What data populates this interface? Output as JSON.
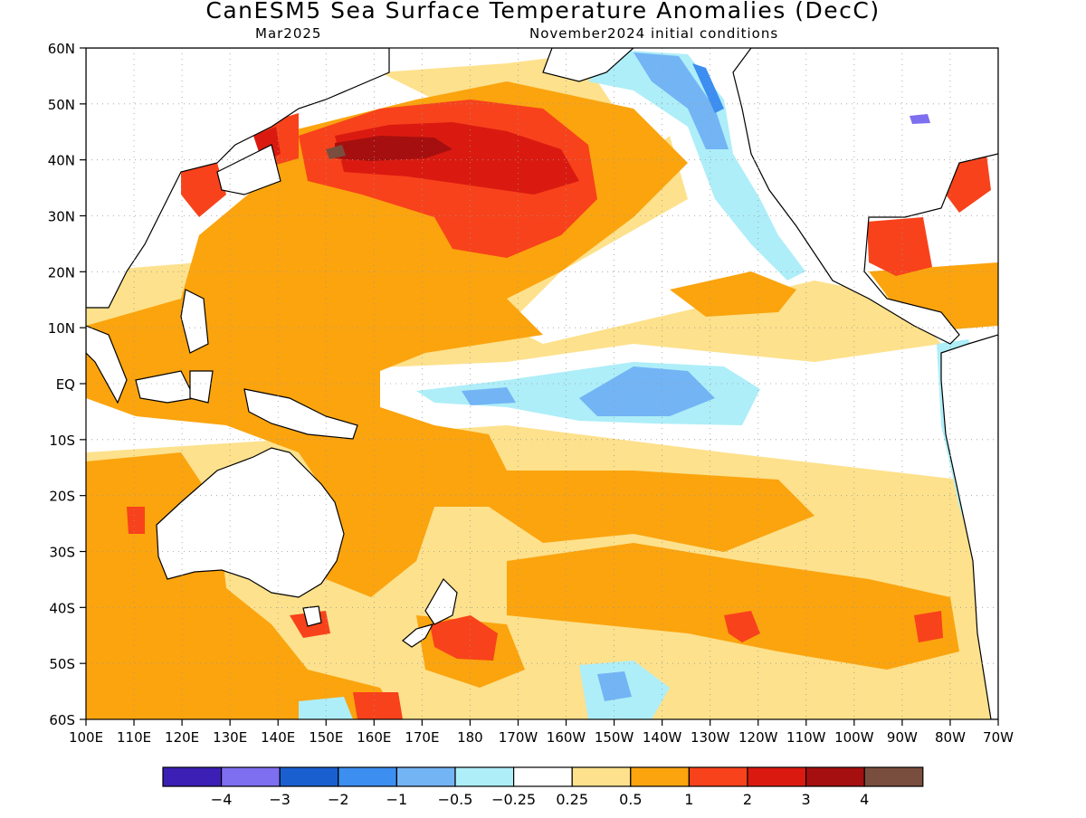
{
  "map": {
    "title": "CanESM5 Sea Surface Temperature Anomalies (DecC)",
    "subtitle_left": "Mar2025",
    "subtitle_right": "November2024 initial conditions",
    "lat_labels": [
      "60N",
      "50N",
      "40N",
      "30N",
      "20N",
      "10N",
      "EQ",
      "10S",
      "20S",
      "30S",
      "40S",
      "50S",
      "60S"
    ],
    "lon_labels": [
      "100E",
      "110E",
      "120E",
      "130E",
      "140E",
      "150E",
      "160E",
      "170E",
      "180",
      "170W",
      "160W",
      "150W",
      "140W",
      "130W",
      "120W",
      "110W",
      "100W",
      "90W",
      "80W",
      "70W"
    ]
  },
  "legend": {
    "boundaries": [
      "−4",
      "−3",
      "−2",
      "−1",
      "−0.5",
      "−0.25",
      "0.25",
      "0.5",
      "1",
      "2",
      "3",
      "4"
    ],
    "colors": [
      "#3c1fb4",
      "#7e6ef0",
      "#1a5fd0",
      "#3c8ef0",
      "#73b4f5",
      "#aeeef8",
      "#ffffff",
      "#fde18c",
      "#fba40e",
      "#f8421b",
      "#da1a10",
      "#a50f0f",
      "#7a4e3e"
    ]
  },
  "colors": {
    "land": "#ffffff",
    "coast": "#000000",
    "grid": "#9a9a9a"
  }
}
